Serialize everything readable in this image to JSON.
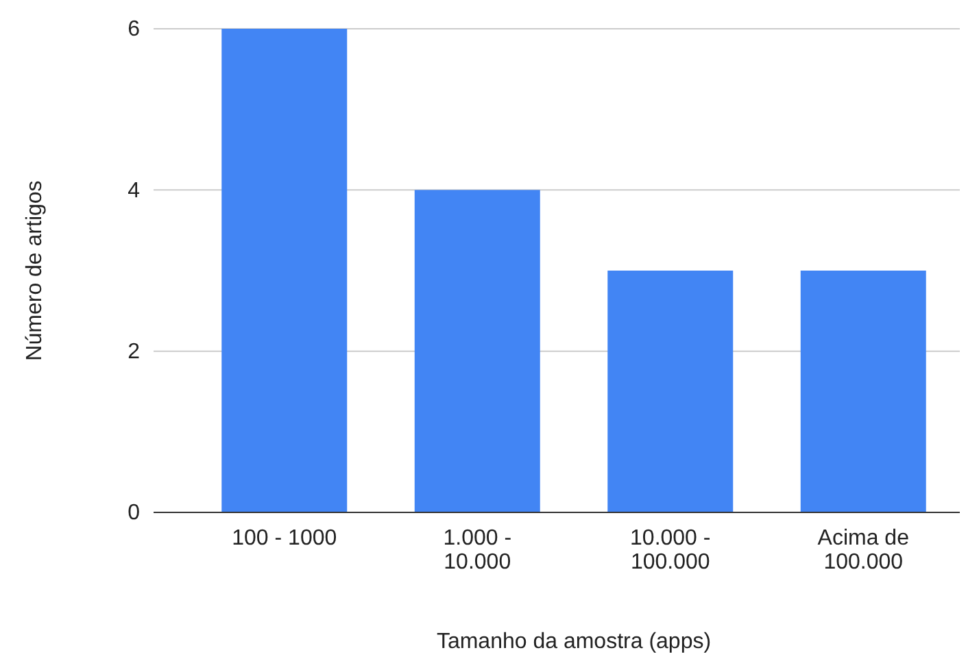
{
  "chart_data": {
    "type": "bar",
    "xlabel": "Tamanho da amostra (apps)",
    "ylabel": "Número de artigos",
    "categories": [
      "100 - 1000",
      "1.000 - 10.000",
      "10.000 - 100.000",
      "Acima de 100.000"
    ],
    "values": [
      6,
      4,
      3,
      3
    ],
    "color": "#4285f4",
    "ylim": [
      0,
      6
    ],
    "yticks": [
      0,
      2,
      4,
      6
    ],
    "grid": "y"
  }
}
